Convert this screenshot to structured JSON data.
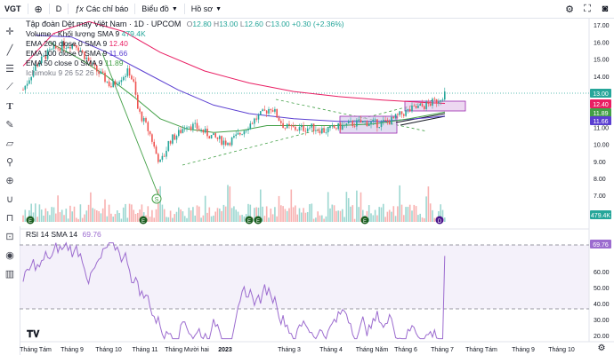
{
  "toolbar": {
    "symbol": "VGT",
    "interval": "D",
    "indicators_label": "Các chỉ báo",
    "chart_type_label": "Biểu đồ",
    "profile_label": "Hồ sơ"
  },
  "legend": {
    "title": "Tập đoàn Dệt may Việt Nam · 1D · UPCOM",
    "o_label": "O",
    "o": "12.80",
    "h_label": "H",
    "h": "13.00",
    "l_label": "L",
    "l": "12.60",
    "c_label": "C",
    "c": "13.00",
    "change": "+0.30 (+2.36%)",
    "indicators": [
      {
        "label": "Volume · Khối lượng SMA 9",
        "value": "479.4K",
        "color": "#26a69a"
      },
      {
        "label": "EMA 200 close 0 SMA 9",
        "value": "12.40",
        "color": "#e91e63"
      },
      {
        "label": "EMA 100 close 0 SMA 9",
        "value": "11.66",
        "color": "#5b3fd1"
      },
      {
        "label": "EMA 50 close 0 SMA 9",
        "value": "11.89",
        "color": "#43a047"
      },
      {
        "label": "Ichimoku 9 26 52 26",
        "value": "",
        "color": "#787b86"
      }
    ]
  },
  "price_axis": {
    "ticks": [
      "17.00",
      "16.00",
      "15.00",
      "14.00",
      "13.00",
      "12.00",
      "11.00",
      "10.00",
      "9.00",
      "8.00",
      "7.00"
    ],
    "badges": [
      {
        "text": "13.00",
        "color": "#26a69a",
        "value": 13.0
      },
      {
        "text": "12.40",
        "color": "#e91e63",
        "value": 12.4
      },
      {
        "text": "11.89",
        "color": "#43a047",
        "value": 11.89
      },
      {
        "text": "11.66",
        "color": "#5b3fd1",
        "value": 11.66
      }
    ],
    "volume_badge": "479.4K"
  },
  "rsi": {
    "label": "RSI 14 SMA 14",
    "value": "69.76",
    "ticks": [
      "70.00",
      "60.00",
      "50.00",
      "40.00",
      "30.00",
      "20.00"
    ]
  },
  "time_axis": {
    "labels": [
      "Tháng Tám",
      "Tháng 9",
      "Tháng 10",
      "Tháng 11",
      "Tháng Mười hai",
      "2023",
      "Tháng 3",
      "Tháng 4",
      "Tháng Năm",
      "Tháng 6",
      "Tháng 7",
      "Tháng Tám",
      "Tháng 9",
      "Tháng 10"
    ]
  },
  "colors": {
    "up": "#26a69a",
    "down": "#ef5350",
    "ema200": "#e91e63",
    "ema100": "#5b3fd1",
    "ema50": "#43a047",
    "rsi": "#9c6ccf"
  }
}
